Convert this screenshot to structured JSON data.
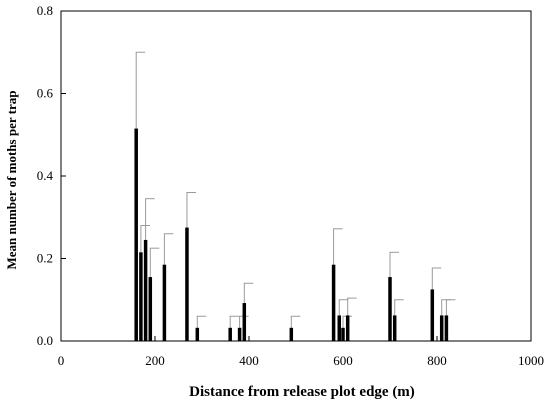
{
  "chart_data": {
    "type": "bar",
    "title": "",
    "xlabel": "Distance from release plot edge (m)",
    "ylabel": "Mean number of moths per trap",
    "xlim": [
      0,
      1000
    ],
    "ylim": [
      0,
      0.8
    ],
    "x_ticks": [
      "0",
      "200",
      "400",
      "600",
      "800",
      "1000"
    ],
    "y_ticks": [
      "0.0",
      "0.2",
      "0.4",
      "0.6",
      "0.8"
    ],
    "grid": false,
    "error_bars": true,
    "points": [
      {
        "x": 160,
        "y": 0.515,
        "err": 0.185
      },
      {
        "x": 170,
        "y": 0.215,
        "err": 0.065
      },
      {
        "x": 180,
        "y": 0.245,
        "err": 0.1
      },
      {
        "x": 190,
        "y": 0.155,
        "err": 0.07
      },
      {
        "x": 220,
        "y": 0.185,
        "err": 0.075
      },
      {
        "x": 268,
        "y": 0.275,
        "err": 0.085
      },
      {
        "x": 290,
        "y": 0.032,
        "err": 0.028
      },
      {
        "x": 360,
        "y": 0.032,
        "err": 0.028
      },
      {
        "x": 380,
        "y": 0.032,
        "err": 0.028
      },
      {
        "x": 390,
        "y": 0.092,
        "err": 0.048
      },
      {
        "x": 490,
        "y": 0.032,
        "err": 0.028
      },
      {
        "x": 580,
        "y": 0.185,
        "err": 0.087
      },
      {
        "x": 592,
        "y": 0.062,
        "err": 0.038
      },
      {
        "x": 600,
        "y": 0.032,
        "err": 0.028
      },
      {
        "x": 610,
        "y": 0.062,
        "err": 0.042
      },
      {
        "x": 700,
        "y": 0.155,
        "err": 0.06
      },
      {
        "x": 710,
        "y": 0.062,
        "err": 0.038
      },
      {
        "x": 790,
        "y": 0.125,
        "err": 0.052
      },
      {
        "x": 810,
        "y": 0.062,
        "err": 0.038
      },
      {
        "x": 820,
        "y": 0.062,
        "err": 0.038
      }
    ]
  }
}
